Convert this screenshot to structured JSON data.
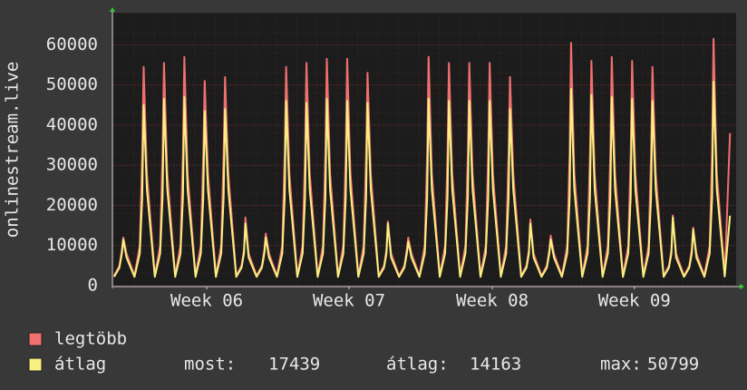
{
  "chart_data": {
    "type": "line",
    "ylabel": "onlinestream.live",
    "x": [
      0.04,
      0.3,
      0.42,
      0.49,
      0.65,
      1.04,
      1.3,
      1.42,
      1.49,
      1.65,
      2.04,
      2.3,
      2.42,
      2.49,
      2.65,
      3.04,
      3.3,
      3.42,
      3.49,
      3.65,
      4.04,
      4.3,
      4.42,
      4.49,
      4.65,
      5.04,
      5.3,
      5.42,
      5.49,
      5.65,
      6.04,
      6.3,
      6.42,
      6.49,
      6.65,
      7.04,
      7.3,
      7.42,
      7.49,
      7.65,
      8.04,
      8.3,
      8.42,
      8.49,
      8.65,
      9.04,
      9.3,
      9.42,
      9.49,
      9.65,
      10.04,
      10.3,
      10.42,
      10.49,
      10.65,
      11.04,
      11.3,
      11.42,
      11.49,
      11.65,
      12.04,
      12.3,
      12.42,
      12.49,
      12.65,
      13.04,
      13.3,
      13.42,
      13.49,
      13.65,
      14.04,
      14.3,
      14.42,
      14.49,
      14.65,
      15.04,
      15.3,
      15.42,
      15.49,
      15.65,
      16.04,
      16.3,
      16.42,
      16.49,
      16.65,
      17.04,
      17.3,
      17.42,
      17.49,
      17.65,
      18.04,
      18.3,
      18.42,
      18.49,
      18.65,
      19.04,
      19.3,
      19.42,
      19.49,
      19.65,
      20.04,
      20.3,
      20.42,
      20.49,
      20.65,
      21.04,
      21.3,
      21.42,
      21.49,
      21.65,
      22.04,
      22.3,
      22.42,
      22.49,
      22.65,
      23.04,
      23.3,
      23.42,
      23.49,
      23.65,
      24.04,
      24.3,
      24.42,
      24.49,
      24.65,
      25.04,
      25.3,
      25.42,
      25.49,
      25.65,
      26.04,
      26.3,
      26.42,
      26.49,
      26.65,
      27.04,
      27.3,
      27.42,
      27.49,
      27.65,
      28.04,
      28.3,
      28.42,
      28.49,
      28.65,
      29.04,
      29.3,
      29.42,
      29.49,
      29.65,
      30.04,
      30.3
    ],
    "series": [
      {
        "name": "legtöbb",
        "color": "#f07070",
        "values": [
          2500,
          5000,
          9000,
          12000,
          8000,
          2500,
          10000,
          33000,
          54500,
          28000,
          2500,
          10000,
          33000,
          55500,
          28000,
          2500,
          10000,
          33000,
          57000,
          28000,
          2500,
          10000,
          33000,
          51000,
          28000,
          2500,
          10000,
          33000,
          52000,
          28000,
          2500,
          5000,
          9000,
          17000,
          8000,
          2500,
          5000,
          9000,
          13000,
          8000,
          2500,
          10000,
          33000,
          54500,
          28000,
          2500,
          10000,
          33000,
          55500,
          28000,
          2500,
          10000,
          33000,
          56500,
          28000,
          2500,
          10000,
          33000,
          56500,
          28000,
          2500,
          10000,
          33000,
          53000,
          28000,
          2500,
          5000,
          9000,
          16000,
          8000,
          2500,
          5000,
          9000,
          12000,
          8000,
          2500,
          10000,
          33000,
          57000,
          28000,
          2500,
          10000,
          33000,
          55500,
          28000,
          2500,
          10000,
          33000,
          55500,
          28000,
          2500,
          10000,
          33000,
          55500,
          28000,
          2500,
          10000,
          33000,
          52000,
          28000,
          2500,
          5000,
          9000,
          16500,
          8000,
          2500,
          5000,
          9000,
          12500,
          8000,
          2500,
          10000,
          33000,
          60500,
          28000,
          2500,
          10000,
          33000,
          56000,
          28000,
          2500,
          10000,
          33000,
          57000,
          28000,
          2500,
          10000,
          33000,
          56000,
          28000,
          2500,
          10000,
          33000,
          54500,
          28000,
          2500,
          5000,
          9000,
          17500,
          8000,
          2500,
          5000,
          9000,
          14500,
          8000,
          2500,
          10000,
          33000,
          61500,
          28000,
          2500,
          38000
        ]
      },
      {
        "name": "átlag",
        "color": "#f8f080",
        "values": [
          2200,
          4500,
          8000,
          11500,
          7000,
          2200,
          8000,
          22000,
          45000,
          24000,
          2200,
          8000,
          22000,
          46500,
          24000,
          2200,
          8000,
          22000,
          47000,
          24000,
          2200,
          8000,
          22000,
          43500,
          24000,
          2200,
          8000,
          22000,
          44000,
          24000,
          2200,
          4500,
          8000,
          15500,
          7000,
          2200,
          4500,
          8000,
          12000,
          7000,
          2200,
          8000,
          22000,
          46000,
          24000,
          2200,
          8000,
          22000,
          45500,
          24000,
          2200,
          8000,
          22000,
          46500,
          24000,
          2200,
          8000,
          22000,
          46000,
          24000,
          2200,
          8000,
          22000,
          45500,
          24000,
          2200,
          4500,
          8000,
          15500,
          7000,
          2200,
          4500,
          8000,
          11000,
          7000,
          2200,
          8000,
          22000,
          46500,
          24000,
          2200,
          8000,
          22000,
          46000,
          24000,
          2200,
          8000,
          22000,
          46000,
          24000,
          2200,
          8000,
          22000,
          46000,
          24000,
          2200,
          8000,
          22000,
          44000,
          24000,
          2200,
          4500,
          8000,
          15500,
          7000,
          2200,
          4500,
          8000,
          11500,
          7000,
          2200,
          8000,
          22000,
          49000,
          24000,
          2200,
          8000,
          22000,
          47500,
          24000,
          2200,
          8000,
          22000,
          47000,
          24000,
          2200,
          8000,
          22000,
          46500,
          24000,
          2200,
          8000,
          22000,
          46000,
          24000,
          2200,
          4500,
          8000,
          17000,
          7000,
          2200,
          4500,
          8000,
          14000,
          7000,
          2200,
          8000,
          22000,
          50799,
          24000,
          2300,
          17439
        ]
      }
    ],
    "stats": [
      {
        "label": "most:",
        "value": 17439
      },
      {
        "label": "átlag:",
        "value": 14163
      },
      {
        "label": "max:",
        "value": 50799
      }
    ],
    "xlim": [
      0,
      30.6
    ],
    "xticks": [
      {
        "value": 4.59,
        "label": "Week 06"
      },
      {
        "value": 11.58,
        "label": "Week 07"
      },
      {
        "value": 18.62,
        "label": "Week 08"
      },
      {
        "value": 25.6,
        "label": "Week 09"
      }
    ],
    "ylim": [
      0,
      68000
    ],
    "yticks": [
      0,
      10000,
      20000,
      30000,
      40000,
      50000,
      60000
    ],
    "grid": true
  }
}
